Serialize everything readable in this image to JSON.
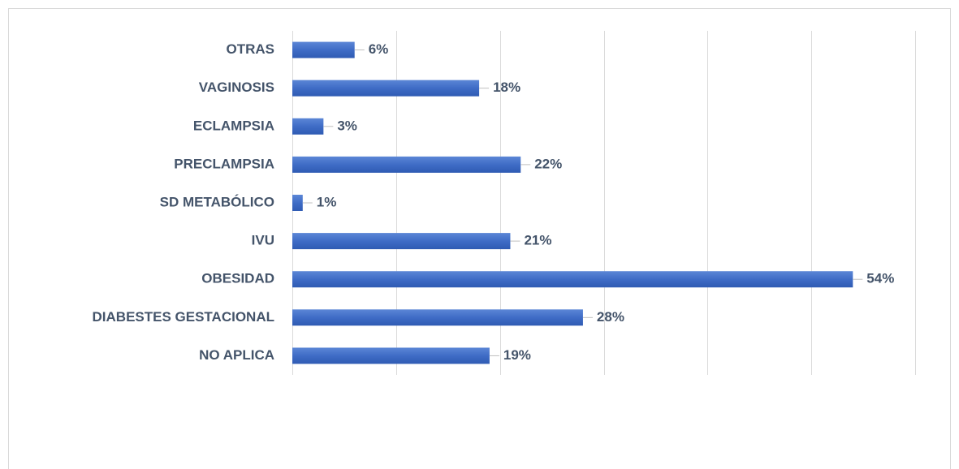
{
  "chart_data": {
    "type": "bar",
    "orientation": "horizontal",
    "categories": [
      "OTRAS",
      "VAGINOSIS",
      "ECLAMPSIA",
      "PRECLAMPSIA",
      "SD METABÓLICO",
      "IVU",
      "OBESIDAD",
      "DIABESTES GESTACIONAL",
      "NO APLICA"
    ],
    "values": [
      6,
      18,
      3,
      22,
      1,
      21,
      54,
      28,
      19
    ],
    "value_labels": [
      "6%",
      "18%",
      "3%",
      "22%",
      "1%",
      "21%",
      "54%",
      "28%",
      "19%"
    ],
    "color": "#4472c4",
    "xlim": [
      0,
      60
    ],
    "xticks": [
      0,
      10,
      20,
      30,
      40,
      50,
      60
    ],
    "grid": true
  }
}
